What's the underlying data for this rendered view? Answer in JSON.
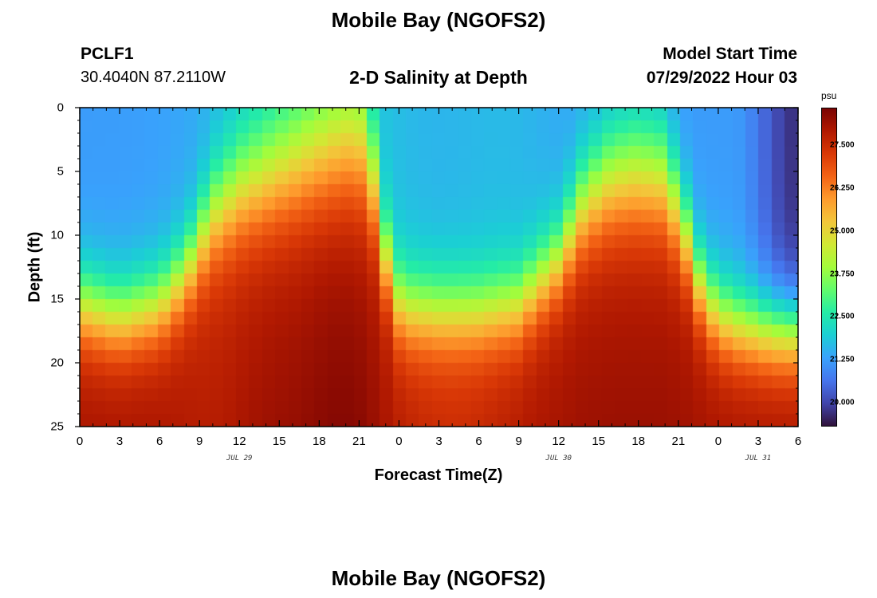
{
  "title": "Mobile Bay (NGOFS2)",
  "title_repeat": "Mobile Bay (NGOFS2)",
  "station": {
    "id": "PCLF1",
    "coords": "30.4040N  87.2110W"
  },
  "subtitle": "2-D Salinity at Depth",
  "model": {
    "label": "Model Start Time",
    "time": "07/29/2022 Hour 03"
  },
  "chart_data": {
    "type": "heatmap",
    "title": "2-D Salinity at Depth",
    "xlabel": "Forecast Time(Z)",
    "ylabel": "Depth (ft)",
    "x_tick_labels": [
      "0",
      "3",
      "6",
      "9",
      "12",
      "15",
      "18",
      "21",
      "0",
      "3",
      "6",
      "9",
      "12",
      "15",
      "18",
      "21",
      "0",
      "3",
      "6"
    ],
    "x_date_labels": [
      {
        "label": "JUL 29",
        "at_tick": 4
      },
      {
        "label": "JUL 30",
        "at_tick": 12
      },
      {
        "label": "JUL 31",
        "at_tick": 17
      }
    ],
    "y_ticks": [
      0,
      5,
      10,
      15,
      20,
      25
    ],
    "ylim": [
      25,
      0
    ],
    "x_range_hours": [
      0,
      54
    ],
    "y_range_ft": [
      0,
      25
    ],
    "colorbar": {
      "unit": "psu",
      "ticks": [
        "27.500",
        "26.250",
        "25.000",
        "23.750",
        "22.500",
        "21.250",
        "20.000"
      ],
      "range": [
        19.3,
        28.6
      ]
    },
    "colorscale": [
      "#30123b",
      "#4145ab",
      "#4675ed",
      "#39a2fc",
      "#1bcfd4",
      "#24eca6",
      "#61fc6c",
      "#a4fc3b",
      "#d1e834",
      "#f3c63a",
      "#fe9b2d",
      "#f36315",
      "#d93806",
      "#b11901",
      "#7a0403"
    ],
    "pattern_description": {
      "surface_fresh_hours": [
        [
          0,
          22
        ],
        [
          24,
          48
        ],
        [
          48,
          54
        ]
      ],
      "saline_deep_peak_hours": [
        19,
        43
      ],
      "transitions": "salty wedge rises toward surface near hours 20 and 44, drops sharply at hours 22 and 48"
    }
  }
}
